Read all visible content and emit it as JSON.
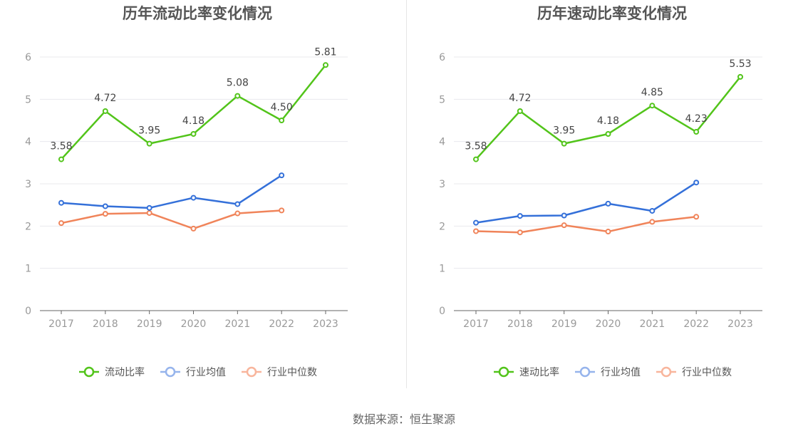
{
  "source_text": "数据来源：恒生聚源",
  "chart_data": [
    {
      "type": "line",
      "title": "历年流动比率变化情况",
      "x": [
        "2017",
        "2018",
        "2019",
        "2020",
        "2021",
        "2022",
        "2023"
      ],
      "ylim": [
        0,
        6
      ],
      "yticks": [
        0,
        1,
        2,
        3,
        4,
        5,
        6
      ],
      "grid": true,
      "legend_position": "bottom",
      "series": [
        {
          "name": "流动比率",
          "color": "#52c41a",
          "labeled": true,
          "values": [
            3.58,
            4.72,
            3.95,
            4.18,
            5.08,
            4.5,
            5.81
          ],
          "labels": [
            "3.58",
            "4.72",
            "3.95",
            "4.18",
            "5.08",
            "4.50",
            "5.81"
          ]
        },
        {
          "name": "行业均值",
          "color": "#3470d9",
          "legend_color": "#96b4ec",
          "labeled": false,
          "values": [
            2.55,
            2.47,
            2.43,
            2.67,
            2.52,
            3.2,
            null
          ]
        },
        {
          "name": "行业中位数",
          "color": "#f0845a",
          "legend_color": "#f8b59c",
          "labeled": false,
          "values": [
            2.07,
            2.29,
            2.31,
            1.94,
            2.3,
            2.37,
            null
          ]
        }
      ]
    },
    {
      "type": "line",
      "title": "历年速动比率变化情况",
      "x": [
        "2017",
        "2018",
        "2019",
        "2020",
        "2021",
        "2022",
        "2023"
      ],
      "ylim": [
        0,
        6
      ],
      "yticks": [
        0,
        1,
        2,
        3,
        4,
        5,
        6
      ],
      "grid": true,
      "legend_position": "bottom",
      "series": [
        {
          "name": "速动比率",
          "color": "#52c41a",
          "labeled": true,
          "values": [
            3.58,
            4.72,
            3.95,
            4.18,
            4.85,
            4.23,
            5.53
          ],
          "labels": [
            "3.58",
            "4.72",
            "3.95",
            "4.18",
            "4.85",
            "4.23",
            "5.53"
          ]
        },
        {
          "name": "行业均值",
          "color": "#3470d9",
          "legend_color": "#96b4ec",
          "labeled": false,
          "values": [
            2.08,
            2.24,
            2.25,
            2.53,
            2.36,
            3.03,
            null
          ]
        },
        {
          "name": "行业中位数",
          "color": "#f0845a",
          "legend_color": "#f8b59c",
          "labeled": false,
          "values": [
            1.88,
            1.85,
            2.02,
            1.87,
            2.1,
            2.22,
            null
          ]
        }
      ]
    }
  ]
}
